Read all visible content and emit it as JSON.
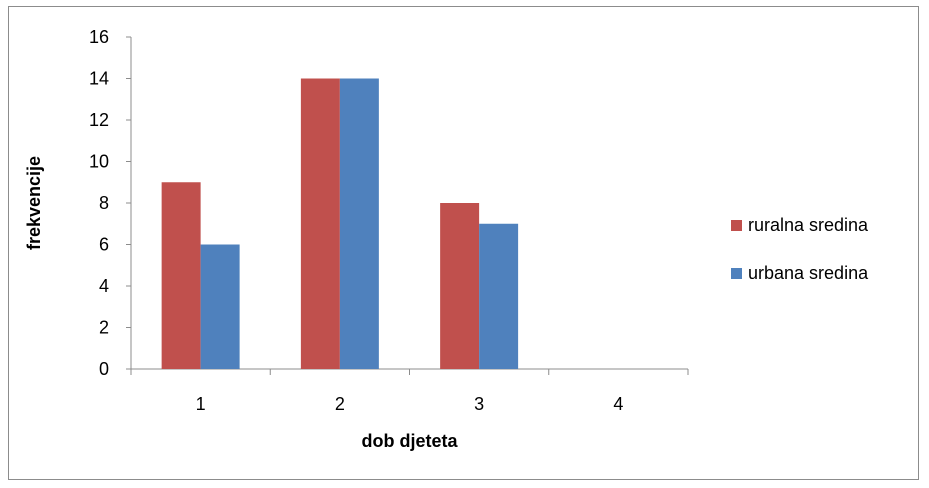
{
  "chart_data": {
    "type": "bar",
    "categories": [
      "1",
      "2",
      "3",
      "4"
    ],
    "series": [
      {
        "name": "ruralna sredina",
        "values": [
          9,
          14,
          8,
          0
        ],
        "color": "#c0504d"
      },
      {
        "name": "urbana sredina",
        "values": [
          6,
          14,
          7,
          0
        ],
        "color": "#4f81bd"
      }
    ],
    "title": "",
    "xlabel": "dob djeteta",
    "ylabel": "frekvencije",
    "ylim": [
      0,
      16
    ],
    "yticks": [
      "0",
      "2",
      "4",
      "6",
      "8",
      "10",
      "12",
      "14",
      "16"
    ],
    "grid": false,
    "legend_position": "right"
  }
}
